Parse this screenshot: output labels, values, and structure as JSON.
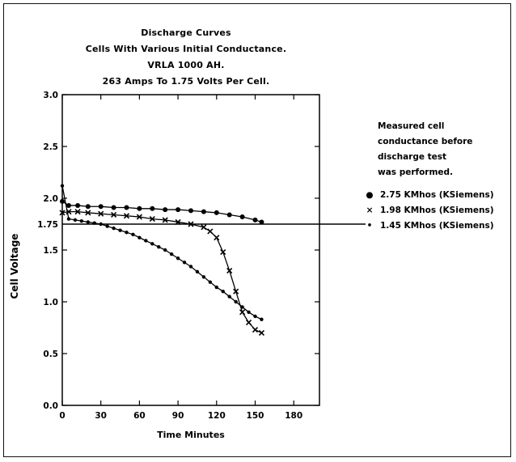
{
  "chart_data": {
    "type": "line",
    "title": [
      "Discharge Curves",
      "Cells With Various Initial Conductance.",
      "VRLA 1000 AH.",
      "263 Amps To 1.75 Volts Per Cell."
    ],
    "xlabel": "Time Minutes",
    "ylabel": "Cell Voltage",
    "xlim": [
      0,
      200
    ],
    "ylim": [
      0,
      3.0
    ],
    "x_ticks": [
      "0",
      "30",
      "60",
      "90",
      "120",
      "150",
      "180"
    ],
    "y_ticks": [
      "0.0",
      "0.5",
      "1.0",
      "1.5",
      "2.0",
      "2.5",
      "3.0"
    ],
    "reference_line": {
      "y": 1.75,
      "label": "1.75"
    },
    "legend_note": [
      "Measured cell",
      "conductance before",
      "discharge test",
      "was performed."
    ],
    "series": [
      {
        "name": "2.75 KMhos (KSiemens)",
        "marker": "●",
        "x": [
          0,
          5,
          12,
          20,
          30,
          40,
          50,
          60,
          70,
          80,
          90,
          100,
          110,
          120,
          130,
          140,
          150,
          155
        ],
        "y": [
          1.97,
          1.93,
          1.93,
          1.92,
          1.92,
          1.91,
          1.91,
          1.9,
          1.9,
          1.89,
          1.89,
          1.88,
          1.87,
          1.86,
          1.84,
          1.82,
          1.79,
          1.77
        ]
      },
      {
        "name": "1.98 KMhos (KSiemens)",
        "marker": "×",
        "x": [
          0,
          5,
          12,
          20,
          30,
          40,
          50,
          60,
          70,
          80,
          90,
          100,
          110,
          115,
          120,
          125,
          130,
          135,
          140,
          145,
          150,
          155
        ],
        "y": [
          1.86,
          1.87,
          1.87,
          1.86,
          1.85,
          1.84,
          1.83,
          1.82,
          1.8,
          1.79,
          1.77,
          1.75,
          1.72,
          1.68,
          1.62,
          1.48,
          1.3,
          1.1,
          0.9,
          0.8,
          0.73,
          0.7
        ]
      },
      {
        "name": "1.45 KMhos (KSiemens)",
        "marker": "•",
        "x": [
          0,
          5,
          10,
          15,
          20,
          25,
          30,
          35,
          40,
          45,
          50,
          55,
          60,
          65,
          70,
          75,
          80,
          85,
          90,
          95,
          100,
          105,
          110,
          115,
          120,
          125,
          130,
          135,
          140,
          145,
          150,
          155
        ],
        "y": [
          2.12,
          1.8,
          1.79,
          1.78,
          1.77,
          1.76,
          1.75,
          1.73,
          1.71,
          1.69,
          1.67,
          1.65,
          1.62,
          1.59,
          1.56,
          1.53,
          1.5,
          1.46,
          1.42,
          1.38,
          1.34,
          1.29,
          1.24,
          1.19,
          1.14,
          1.1,
          1.05,
          1.0,
          0.95,
          0.9,
          0.86,
          0.83
        ]
      }
    ]
  }
}
